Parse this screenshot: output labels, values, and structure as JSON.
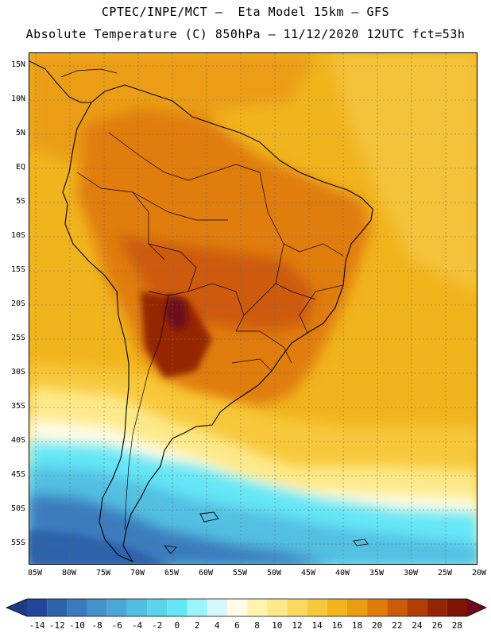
{
  "header": {
    "line1": "CPTEC/INPE/MCT —  Eta Model 15km — GFS",
    "line2": "Absolute Temperature (C) 850hPa — 11/12/2020 12UTC fct=53h"
  },
  "lat_labels": [
    "15N",
    "10N",
    "5N",
    "EQ",
    "5S",
    "10S",
    "15S",
    "20S",
    "25S",
    "30S",
    "35S",
    "40S",
    "45S",
    "50S",
    "55S"
  ],
  "lon_labels": [
    "85W",
    "80W",
    "75W",
    "70W",
    "65W",
    "60W",
    "55W",
    "50W",
    "45W",
    "40W",
    "35W",
    "30W",
    "25W",
    "20W"
  ],
  "colorbar": {
    "ticks": [
      "-14",
      "-12",
      "-10",
      "-8",
      "-6",
      "-4",
      "-2",
      "0",
      "2",
      "4",
      "6",
      "8",
      "10",
      "12",
      "14",
      "16",
      "18",
      "20",
      "22",
      "24",
      "26",
      "28"
    ],
    "colors": [
      "#22469a",
      "#2e62ab",
      "#3a7bbd",
      "#4392c9",
      "#4aa8d6",
      "#52bfe2",
      "#5bd3ec",
      "#65e6f6",
      "#9af4fc",
      "#d6f8fc",
      "#fffbe6",
      "#fff4b0",
      "#fde98a",
      "#fbd860",
      "#f7c83a",
      "#f1b41d",
      "#eb9d12",
      "#e07d0a",
      "#cd5a08",
      "#b33d06",
      "#962506",
      "#7d1405"
    ],
    "low_color": "#1d3a84",
    "high_color": "#6e0a1e"
  },
  "map": {
    "ocean_color": "#f1b41d",
    "continent_color": "#d88a1a"
  }
}
